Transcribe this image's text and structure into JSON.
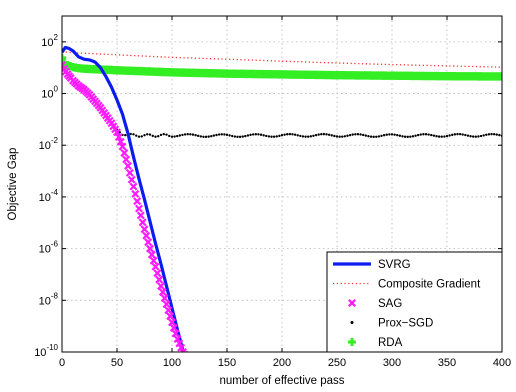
{
  "chart_data": {
    "type": "line",
    "title": "",
    "xlabel": "number of effective pass",
    "ylabel": "Objective Gap",
    "xlim": [
      0,
      400
    ],
    "ylim_log10": [
      -10,
      3
    ],
    "yscale": "log",
    "grid": true,
    "legend_position": "bottom-right",
    "x_ticks": [
      0,
      50,
      100,
      150,
      200,
      250,
      300,
      350,
      400
    ],
    "x_tick_labels": [
      "0",
      "50",
      "100",
      "150",
      "200",
      "250",
      "300",
      "350",
      "400"
    ],
    "y_ticks": [
      -10,
      -8,
      -6,
      -4,
      -2,
      0,
      2
    ],
    "y_tick_labels": [
      {
        "base": "10",
        "exp": "-10"
      },
      {
        "base": "10",
        "exp": "-8"
      },
      {
        "base": "10",
        "exp": "-6"
      },
      {
        "base": "10",
        "exp": "-4"
      },
      {
        "base": "10",
        "exp": "-2"
      },
      {
        "base": "10",
        "exp": "0"
      },
      {
        "base": "10",
        "exp": "2"
      }
    ],
    "series": [
      {
        "name": "SVRG",
        "style": "solid",
        "color": "#0a1cf0",
        "x": [
          0,
          3,
          6,
          10,
          15,
          20,
          25,
          30,
          35,
          40,
          45,
          50,
          55,
          60,
          65,
          70,
          75,
          80,
          85,
          90,
          95,
          100,
          105,
          110,
          113
        ],
        "y": [
          1.6,
          1.78,
          1.75,
          1.65,
          1.42,
          1.33,
          1.3,
          1.22,
          1.0,
          0.65,
          0.25,
          -0.25,
          -0.8,
          -1.55,
          -2.45,
          -3.3,
          -4.1,
          -4.95,
          -5.8,
          -6.6,
          -7.45,
          -8.3,
          -9.15,
          -9.95,
          -10.2
        ]
      },
      {
        "name": "Composite Gradient",
        "style": "dotted",
        "color": "#ff2a2a",
        "x": [
          0,
          10,
          50,
          100,
          150,
          200,
          250,
          300,
          350,
          400
        ],
        "y": [
          1.62,
          1.58,
          1.5,
          1.4,
          1.33,
          1.25,
          1.18,
          1.12,
          1.07,
          1.02
        ]
      },
      {
        "name": "SAG",
        "style": "x-markers",
        "color": "#ff1aff",
        "x": [
          0,
          2,
          5,
          8,
          10,
          15,
          20,
          25,
          30,
          35,
          40,
          45,
          50,
          55,
          60,
          65,
          70,
          75,
          80,
          85,
          90,
          95,
          100,
          105,
          110,
          113
        ],
        "y": [
          1.1,
          0.95,
          0.75,
          0.6,
          0.5,
          0.3,
          0.15,
          -0.05,
          -0.3,
          -0.55,
          -0.85,
          -1.15,
          -1.5,
          -2.05,
          -2.8,
          -3.6,
          -4.45,
          -5.25,
          -6.0,
          -6.7,
          -7.45,
          -8.15,
          -8.85,
          -9.5,
          -10.0,
          -10.2
        ]
      },
      {
        "name": "Prox−SGD",
        "style": "dot-markers",
        "color": "#000000",
        "x": [
          0,
          2,
          5,
          8,
          10,
          15,
          20,
          25,
          30,
          35,
          40,
          45,
          50,
          55,
          60,
          65,
          70,
          75,
          80,
          100,
          150,
          200,
          250,
          300,
          350,
          400
        ],
        "y": [
          1.0,
          0.9,
          0.75,
          0.6,
          0.5,
          0.3,
          0.15,
          -0.05,
          -0.3,
          -0.55,
          -0.85,
          -1.15,
          -1.4,
          -1.6,
          -1.62,
          -1.61,
          -1.62,
          -1.63,
          -1.62,
          -1.62,
          -1.63,
          -1.62,
          -1.62,
          -1.63,
          -1.62,
          -1.62
        ]
      },
      {
        "name": "RDA",
        "style": "plus-markers",
        "color": "#33ee22",
        "x": [
          0,
          2,
          5,
          10,
          15,
          20,
          30,
          40,
          50,
          75,
          100,
          150,
          200,
          250,
          300,
          350,
          400
        ],
        "y": [
          1.38,
          1.2,
          1.1,
          1.02,
          0.98,
          0.96,
          0.94,
          0.92,
          0.9,
          0.86,
          0.82,
          0.77,
          0.74,
          0.71,
          0.69,
          0.67,
          0.66
        ]
      }
    ]
  }
}
